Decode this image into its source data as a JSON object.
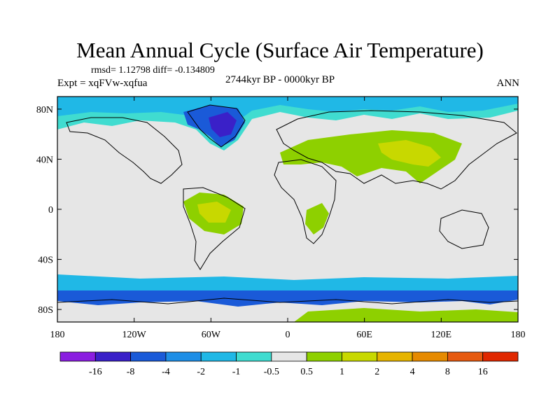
{
  "header": {
    "title": "Mean Annual Cycle (Surface Air Temperature)",
    "stats": "rmsd= 1.12798 diff= -0.134809",
    "experiment": "Expt = xqFVw-xqfua",
    "period": "2744kyr BP - 0000kyr BP",
    "season": "ANN"
  },
  "axes": {
    "lon": [
      {
        "deg": -180,
        "label": "180"
      },
      {
        "deg": -120,
        "label": "120W"
      },
      {
        "deg": -60,
        "label": "60W"
      },
      {
        "deg": 0,
        "label": "0"
      },
      {
        "deg": 60,
        "label": "60E"
      },
      {
        "deg": 120,
        "label": "120E"
      },
      {
        "deg": 180,
        "label": "180"
      }
    ],
    "lat": [
      {
        "deg": 80,
        "label": "80N"
      },
      {
        "deg": 40,
        "label": "40N"
      },
      {
        "deg": 0,
        "label": "0"
      },
      {
        "deg": -40,
        "label": "40S"
      },
      {
        "deg": -80,
        "label": "80S"
      }
    ],
    "lon_range": [
      -180,
      180
    ],
    "lat_range": [
      -90,
      90
    ]
  },
  "colorbar": {
    "colors": [
      "#8a1ee0",
      "#3a20c8",
      "#1a5ad8",
      "#1e8ee6",
      "#20b8e6",
      "#40dcd0",
      "#e6e6e6",
      "#8ed000",
      "#c8d800",
      "#e6b400",
      "#e68a00",
      "#e65a10",
      "#e02800"
    ],
    "labels": [
      "-16",
      "-8",
      "-4",
      "-2",
      "-1",
      "-0.5",
      "0.5",
      "1",
      "2",
      "4",
      "8",
      "16"
    ]
  },
  "map_layers": [
    {
      "name": "arctic-band",
      "color": "#40dcd0"
    },
    {
      "name": "arctic-cool",
      "color": "#20b8e6"
    },
    {
      "name": "greenland-cold",
      "color": "#1a5ad8"
    },
    {
      "name": "greenland-core",
      "color": "#3a20c8"
    },
    {
      "name": "eurasia-warm",
      "color": "#8ed000"
    },
    {
      "name": "eurasia-warmer",
      "color": "#c8d800"
    },
    {
      "name": "amazon-warm",
      "color": "#8ed000"
    },
    {
      "name": "amazon-warmer",
      "color": "#c8d800"
    },
    {
      "name": "africa-warm",
      "color": "#8ed000"
    },
    {
      "name": "southern-ocean",
      "color": "#20b8e6"
    },
    {
      "name": "antarctic-cold",
      "color": "#1a5ad8"
    },
    {
      "name": "antarctic-warm",
      "color": "#8ed000"
    }
  ]
}
